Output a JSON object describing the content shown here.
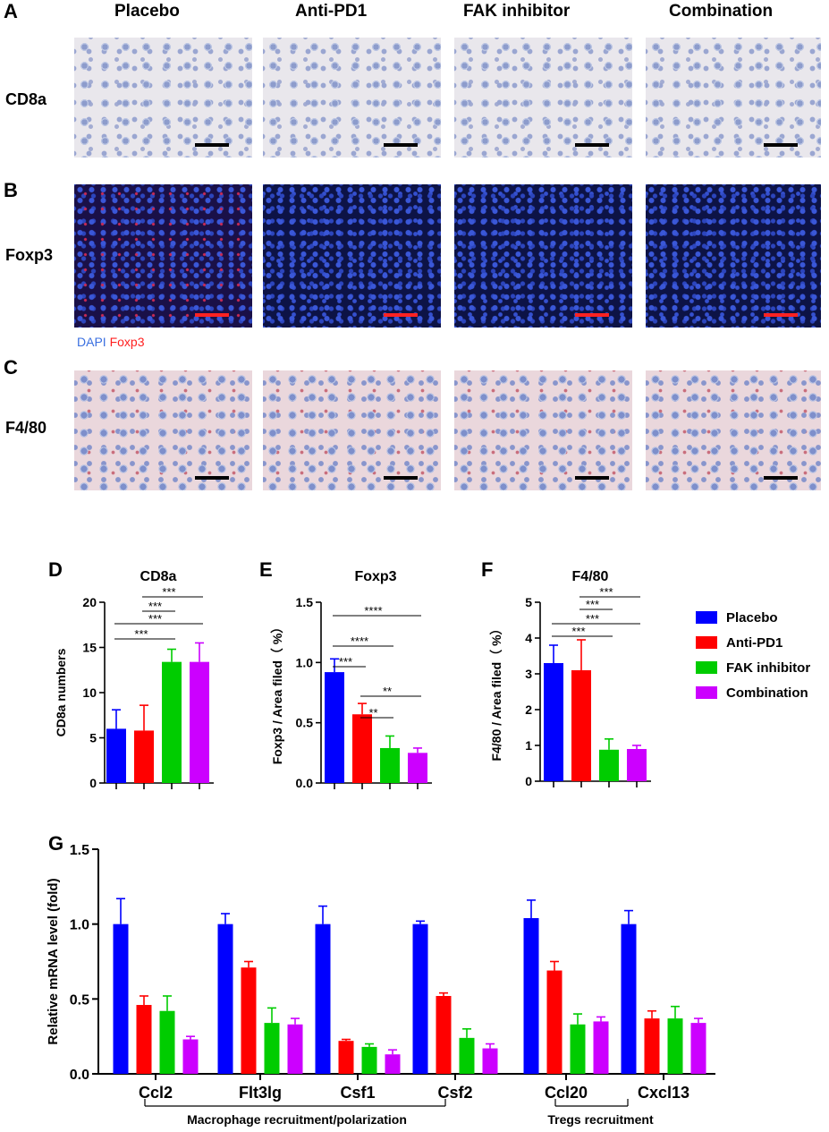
{
  "panel_letters": [
    "A",
    "B",
    "C",
    "D",
    "E",
    "F",
    "G"
  ],
  "groups": [
    "Placebo",
    "Anti-PD1",
    "FAK inhibitor",
    "Combination"
  ],
  "group_colors": [
    "#0000ff",
    "#ff0000",
    "#00cc00",
    "#cc00ff"
  ],
  "micro_rows": [
    {
      "label": "CD8a",
      "style": "ihc",
      "scalebar_color": "#000000"
    },
    {
      "label": "Foxp3",
      "style": "fluo",
      "scalebar_color": "#ff2222"
    },
    {
      "label": "F4/80",
      "style": "ihc-pink",
      "scalebar_color": "#000000"
    }
  ],
  "stain_key": {
    "dapi": "DAPI",
    "foxp3": "Foxp3",
    "dapi_color": "#3a6fe0",
    "foxp3_color": "#ff2020"
  },
  "legend": [
    "Placebo",
    "Anti-PD1",
    "FAK inhibitor",
    "Combination"
  ],
  "chart_data": [
    {
      "panel": "D",
      "type": "bar",
      "title": "CD8a",
      "ylabel": "CD8a numbers",
      "categories": [
        "Placebo",
        "Anti-PD1",
        "FAK inhibitor",
        "Combination"
      ],
      "values": [
        6.0,
        5.8,
        13.4,
        13.4
      ],
      "errors": [
        2.1,
        2.8,
        1.4,
        2.1
      ],
      "ylim": [
        0,
        20
      ],
      "yticks": [
        0,
        5,
        10,
        15,
        20
      ],
      "ytick_labels": [
        "0",
        "5",
        "10",
        "15",
        "20"
      ],
      "significance": [
        {
          "from": 0,
          "to": 2,
          "label": "***"
        },
        {
          "from": 0,
          "to": 3,
          "label": "***"
        },
        {
          "from": 1,
          "to": 2,
          "label": "***"
        },
        {
          "from": 1,
          "to": 3,
          "label": "***"
        }
      ]
    },
    {
      "panel": "E",
      "type": "bar",
      "title": "Foxp3",
      "ylabel": "Foxp3 / Area filed（ %）",
      "categories": [
        "Placebo",
        "Anti-PD1",
        "FAK inhibitor",
        "Combination"
      ],
      "values": [
        0.92,
        0.57,
        0.29,
        0.25
      ],
      "errors": [
        0.11,
        0.09,
        0.1,
        0.04
      ],
      "ylim": [
        0,
        1.5
      ],
      "yticks": [
        0,
        0.5,
        1.0,
        1.5
      ],
      "ytick_labels": [
        "0.0",
        "0.5",
        "1.0",
        "1.5"
      ],
      "significance": [
        {
          "from": 0,
          "to": 1,
          "label": "***"
        },
        {
          "from": 0,
          "to": 2,
          "label": "****"
        },
        {
          "from": 0,
          "to": 3,
          "label": "****"
        },
        {
          "from": 1,
          "to": 2,
          "label": "**"
        },
        {
          "from": 1,
          "to": 3,
          "label": "**"
        }
      ]
    },
    {
      "panel": "F",
      "type": "bar",
      "title": "F4/80",
      "ylabel": "F4/80 / Area filed（ %）",
      "categories": [
        "Placebo",
        "Anti-PD1",
        "FAK inhibitor",
        "Combination"
      ],
      "values": [
        3.3,
        3.1,
        0.88,
        0.9
      ],
      "errors": [
        0.5,
        0.85,
        0.3,
        0.1
      ],
      "ylim": [
        0,
        5
      ],
      "yticks": [
        0,
        1,
        2,
        3,
        4,
        5
      ],
      "ytick_labels": [
        "0",
        "1",
        "2",
        "3",
        "4",
        "5"
      ],
      "significance": [
        {
          "from": 0,
          "to": 2,
          "label": "***"
        },
        {
          "from": 0,
          "to": 3,
          "label": "***"
        },
        {
          "from": 1,
          "to": 2,
          "label": "***"
        },
        {
          "from": 1,
          "to": 3,
          "label": "***"
        }
      ]
    },
    {
      "panel": "G",
      "type": "bar",
      "title": "",
      "ylabel": "Relative mRNA level (fold)",
      "categories": [
        "Ccl2",
        "Flt3lg",
        "Csf1",
        "Csf2",
        "Ccl20",
        "Cxcl13"
      ],
      "series": [
        {
          "name": "Placebo",
          "values": [
            1.0,
            1.0,
            1.0,
            1.0,
            1.04,
            1.0
          ],
          "errors": [
            0.17,
            0.07,
            0.12,
            0.02,
            0.12,
            0.09
          ]
        },
        {
          "name": "Anti-PD1",
          "values": [
            0.46,
            0.71,
            0.22,
            0.52,
            0.69,
            0.37
          ],
          "errors": [
            0.06,
            0.04,
            0.01,
            0.02,
            0.06,
            0.05
          ]
        },
        {
          "name": "FAK inhibitor",
          "values": [
            0.42,
            0.34,
            0.18,
            0.24,
            0.33,
            0.37
          ],
          "errors": [
            0.1,
            0.1,
            0.02,
            0.06,
            0.07,
            0.08
          ]
        },
        {
          "name": "Combination",
          "values": [
            0.23,
            0.33,
            0.13,
            0.17,
            0.35,
            0.34
          ],
          "errors": [
            0.02,
            0.04,
            0.03,
            0.03,
            0.03,
            0.03
          ]
        }
      ],
      "ylim": [
        0,
        1.5
      ],
      "yticks": [
        0,
        0.5,
        1.0,
        1.5
      ],
      "ytick_labels": [
        "0.0",
        "0.5",
        "1.0",
        "1.5"
      ],
      "brackets": [
        {
          "label": "Macrophage recruitment/polarization",
          "from": 0,
          "to": 3
        },
        {
          "label": "Tregs  recruitment",
          "from": 4,
          "to": 5
        }
      ]
    }
  ]
}
